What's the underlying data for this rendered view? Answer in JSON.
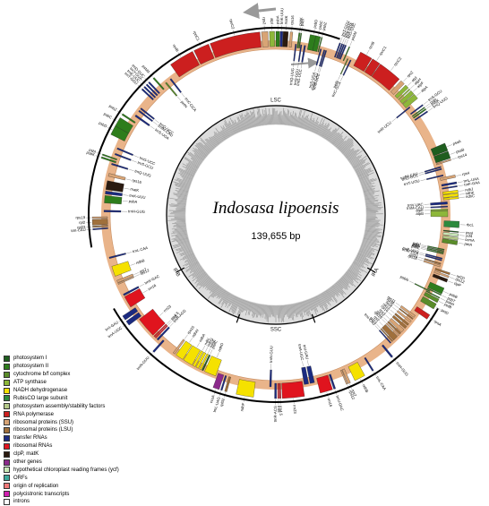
{
  "title": "Indosasa lipoensis",
  "genome_size": "139,655 bp",
  "regions": [
    "LSC",
    "IRB",
    "SSC",
    "IRA"
  ],
  "legend": [
    {
      "label": "photosystem I",
      "color": "#1f5e1f"
    },
    {
      "label": "photosystem II",
      "color": "#2e7d1c"
    },
    {
      "label": "cytochrome b/f complex",
      "color": "#5a8c2a"
    },
    {
      "label": "ATP synthase",
      "color": "#8db73a"
    },
    {
      "label": "NADH dehydrogenase",
      "color": "#f5e100"
    },
    {
      "label": "RubisCO large subunit",
      "color": "#2d8a3e"
    },
    {
      "label": "photosystem assembly/stability factors",
      "color": "#b5c98a"
    },
    {
      "label": "RNA polymerase",
      "color": "#cc1f1f"
    },
    {
      "label": "ribosomal proteins (SSU)",
      "color": "#d8a475"
    },
    {
      "label": "ribosomal proteins (LSU)",
      "color": "#a0703c"
    },
    {
      "label": "transfer RNAs",
      "color": "#1b2a80"
    },
    {
      "label": "ribosomal RNAs",
      "color": "#e0141e"
    },
    {
      "label": "clpP, matK",
      "color": "#2a1a10"
    },
    {
      "label": "other genes",
      "color": "#8c2a8c"
    },
    {
      "label": "hypothetical chloroplast reading frames (ycf)",
      "color": "#c9e8b8"
    },
    {
      "label": "ORFs",
      "color": "#3da89c"
    },
    {
      "label": "origin of replication",
      "color": "#f07878"
    },
    {
      "label": "polycistronic transcripts",
      "color": "#d11fb0"
    },
    {
      "label": "introns",
      "color": "#ffffff"
    }
  ],
  "genes": [
    {
      "name": "psbA",
      "start": 0,
      "end": 1.2,
      "cat": 1,
      "side": "out"
    },
    {
      "name": "trnK-UUU",
      "start": 1.4,
      "end": 2.2,
      "cat": 10,
      "side": "out"
    },
    {
      "name": "matK",
      "start": 2.3,
      "end": 3.9,
      "cat": 12,
      "side": "out"
    },
    {
      "name": "rps16",
      "start": 4.5,
      "end": 5.3,
      "cat": 8,
      "side": "out"
    },
    {
      "name": "trnQ-UUG",
      "start": 6.5,
      "end": 6.9,
      "cat": 10,
      "side": "in"
    },
    {
      "name": "psbK",
      "start": 7.2,
      "end": 7.6,
      "cat": 1,
      "side": "out"
    },
    {
      "name": "psbI",
      "start": 7.8,
      "end": 8.1,
      "cat": 1,
      "side": "out"
    },
    {
      "name": "trnS-GCU",
      "start": 8.3,
      "end": 8.7,
      "cat": 10,
      "side": "in"
    },
    {
      "name": "trnG-UCC",
      "start": 9.5,
      "end": 10.0,
      "cat": 10,
      "side": "in"
    },
    {
      "name": "psbD",
      "start": 10.8,
      "end": 12.8,
      "cat": 1,
      "side": "out"
    },
    {
      "name": "psbC",
      "start": 12.6,
      "end": 14.1,
      "cat": 1,
      "side": "out"
    },
    {
      "name": "psbZ",
      "start": 14.4,
      "end": 14.7,
      "cat": 1,
      "side": "out"
    },
    {
      "name": "trnS-UGA",
      "start": 15.0,
      "end": 15.4,
      "cat": 10,
      "side": "in"
    },
    {
      "name": "trnfM-CAU",
      "start": 16.2,
      "end": 16.6,
      "cat": 10,
      "side": "in"
    },
    {
      "name": "trnG-UCC",
      "start": 16.8,
      "end": 17.2,
      "cat": 10,
      "side": "in"
    },
    {
      "name": "trnT-GGU",
      "start": 20.3,
      "end": 20.7,
      "cat": 10,
      "side": "out"
    },
    {
      "name": "trnE-UUC",
      "start": 21.0,
      "end": 21.4,
      "cat": 10,
      "side": "out"
    },
    {
      "name": "trnY-GUA",
      "start": 21.6,
      "end": 22.0,
      "cat": 10,
      "side": "out"
    },
    {
      "name": "trnD-GUC",
      "start": 22.2,
      "end": 22.6,
      "cat": 10,
      "side": "out"
    },
    {
      "name": "psbM",
      "start": 23.5,
      "end": 23.8,
      "cat": 1,
      "side": "out"
    },
    {
      "name": "petN",
      "start": 24.6,
      "end": 24.9,
      "cat": 2,
      "side": "in"
    },
    {
      "name": "trnC-GCA",
      "start": 25.6,
      "end": 26.0,
      "cat": 10,
      "side": "in"
    },
    {
      "name": "rpoB",
      "start": 27.5,
      "end": 31.5,
      "cat": 7,
      "side": "out"
    },
    {
      "name": "rpoC1",
      "start": 31.8,
      "end": 34.5,
      "cat": 7,
      "side": "out"
    },
    {
      "name": "rpoC2",
      "start": 34.7,
      "end": 42.3,
      "cat": 7,
      "side": "out"
    },
    {
      "name": "rps2",
      "start": 43.0,
      "end": 44.4,
      "cat": 8,
      "side": "out"
    },
    {
      "name": "atpI",
      "start": 45.0,
      "end": 46.2,
      "cat": 3,
      "side": "out"
    },
    {
      "name": "atpH",
      "start": 46.6,
      "end": 47.0,
      "cat": 3,
      "side": "out"
    },
    {
      "name": "atpF",
      "start": 47.4,
      "end": 48.7,
      "cat": 3,
      "side": "out"
    },
    {
      "name": "atpA",
      "start": 48.9,
      "end": 50.6,
      "cat": 3,
      "side": "out"
    },
    {
      "name": "trnR-UCU",
      "start": 51.0,
      "end": 51.4,
      "cat": 10,
      "side": "in"
    },
    {
      "name": "trnS-GCU",
      "start": 53.0,
      "end": 53.4,
      "cat": 10,
      "side": "out"
    },
    {
      "name": "psbI",
      "start": 54.0,
      "end": 54.3,
      "cat": 1,
      "side": "out"
    },
    {
      "name": "psbK",
      "start": 54.6,
      "end": 55.0,
      "cat": 1,
      "side": "out"
    },
    {
      "name": "trnQ-UUG",
      "start": 55.5,
      "end": 55.9,
      "cat": 10,
      "side": "out"
    },
    {
      "name": "psaA",
      "start": 67.0,
      "end": 69.5,
      "cat": 0,
      "side": "out"
    },
    {
      "name": "psaB",
      "start": 69.7,
      "end": 72.0,
      "cat": 0,
      "side": "out"
    },
    {
      "name": "rps14",
      "start": 72.3,
      "end": 72.7,
      "cat": 8,
      "side": "out"
    },
    {
      "name": "trnfM-CAU",
      "start": 73.6,
      "end": 74.0,
      "cat": 10,
      "side": "in"
    },
    {
      "name": "trnG-GCC",
      "start": 74.3,
      "end": 74.7,
      "cat": 10,
      "side": "in"
    },
    {
      "name": "trnT-UGU",
      "start": 76.5,
      "end": 76.9,
      "cat": 10,
      "side": "in"
    },
    {
      "name": "rps4",
      "start": 77.4,
      "end": 78.2,
      "cat": 8,
      "side": "out"
    },
    {
      "name": "trnL-UAA",
      "start": 79.6,
      "end": 80.2,
      "cat": 10,
      "side": "out"
    },
    {
      "name": "trnF-GAA",
      "start": 80.8,
      "end": 81.2,
      "cat": 10,
      "side": "out"
    },
    {
      "name": "ndhJ",
      "start": 82.2,
      "end": 83.0,
      "cat": 4,
      "side": "out"
    },
    {
      "name": "ndhK",
      "start": 83.2,
      "end": 84.1,
      "cat": 4,
      "side": "out"
    },
    {
      "name": "ndhC",
      "start": 84.3,
      "end": 84.9,
      "cat": 4,
      "side": "out"
    },
    {
      "name": "trnV-UAC",
      "start": 85.6,
      "end": 86.4,
      "cat": 10,
      "side": "in"
    },
    {
      "name": "trnM-CAU",
      "start": 87.0,
      "end": 87.4,
      "cat": 10,
      "side": "in"
    },
    {
      "name": "atpE",
      "start": 88.0,
      "end": 88.5,
      "cat": 3,
      "side": "in"
    },
    {
      "name": "atpB",
      "start": 88.6,
      "end": 90.6,
      "cat": 3,
      "side": "in"
    },
    {
      "name": "rbcL",
      "start": 92.0,
      "end": 94.0,
      "cat": 5,
      "side": "out"
    },
    {
      "name": "psaI",
      "start": 95.2,
      "end": 95.5,
      "cat": 0,
      "side": "out"
    },
    {
      "name": "ycf4",
      "start": 95.9,
      "end": 96.7,
      "cat": 14,
      "side": "out"
    },
    {
      "name": "cemA",
      "start": 97.0,
      "end": 97.9,
      "cat": 6,
      "side": "out"
    },
    {
      "name": "petA",
      "start": 98.1,
      "end": 99.4,
      "cat": 2,
      "side": "out"
    },
    {
      "name": "psbJ",
      "start": 101.5,
      "end": 101.8,
      "cat": 1,
      "side": "in"
    },
    {
      "name": "psbL",
      "start": 102.0,
      "end": 102.2,
      "cat": 1,
      "side": "in"
    },
    {
      "name": "psbF",
      "start": 102.4,
      "end": 102.7,
      "cat": 1,
      "side": "in"
    },
    {
      "name": "psbE",
      "start": 102.9,
      "end": 103.2,
      "cat": 1,
      "side": "in"
    },
    {
      "name": "trnP-UGG",
      "start": 104.5,
      "end": 104.9,
      "cat": 10,
      "side": "in"
    },
    {
      "name": "trnW-CCA",
      "start": 105.1,
      "end": 105.5,
      "cat": 10,
      "side": "in"
    },
    {
      "name": "rpl33",
      "start": 106.3,
      "end": 106.7,
      "cat": 9,
      "side": "in"
    },
    {
      "name": "rps18",
      "start": 107.0,
      "end": 107.6,
      "cat": 8,
      "side": "in"
    },
    {
      "name": "rpl20",
      "start": 108.4,
      "end": 109.0,
      "cat": 9,
      "side": "out"
    },
    {
      "name": "rps12",
      "start": 109.4,
      "end": 110.0,
      "cat": 8,
      "side": "out"
    },
    {
      "name": "clpP",
      "start": 110.5,
      "end": 111.5,
      "cat": 12,
      "side": "out"
    },
    {
      "name": "psbB",
      "start": 113.5,
      "end": 115.5,
      "cat": 1,
      "side": "out"
    },
    {
      "name": "psbT",
      "start": 115.7,
      "end": 116.0,
      "cat": 1,
      "side": "out"
    },
    {
      "name": "psbN",
      "start": 116.2,
      "end": 116.5,
      "cat": 1,
      "side": "in"
    },
    {
      "name": "psbH",
      "start": 116.7,
      "end": 117.0,
      "cat": 1,
      "side": "out"
    },
    {
      "name": "petB",
      "start": 117.3,
      "end": 118.5,
      "cat": 2,
      "side": "out"
    },
    {
      "name": "petD",
      "start": 119.0,
      "end": 120.8,
      "cat": 2,
      "side": "out"
    },
    {
      "name": "rpoA",
      "start": 123.0,
      "end": 124.6,
      "cat": 7,
      "side": "out"
    },
    {
      "name": "rps11",
      "start": 125.8,
      "end": 126.6,
      "cat": 8,
      "side": "in"
    },
    {
      "name": "rpl36",
      "start": 127.0,
      "end": 127.4,
      "cat": 9,
      "side": "in"
    },
    {
      "name": "rps8",
      "start": 128.0,
      "end": 128.7,
      "cat": 8,
      "side": "in"
    },
    {
      "name": "rpl14",
      "start": 129.3,
      "end": 130.0,
      "cat": 9,
      "side": "in"
    },
    {
      "name": "rpl16",
      "start": 130.4,
      "end": 131.3,
      "cat": 9,
      "side": "in"
    },
    {
      "name": "rps3",
      "start": 131.8,
      "end": 133.0,
      "cat": 8,
      "side": "in"
    },
    {
      "name": "rpl22",
      "start": 133.3,
      "end": 133.9,
      "cat": 9,
      "side": "in"
    },
    {
      "name": "rps19",
      "start": 134.2,
      "end": 134.7,
      "cat": 8,
      "side": "in"
    },
    {
      "name": "rpl2",
      "start": 135.0,
      "end": 136.8,
      "cat": 9,
      "side": "in"
    },
    {
      "name": "rpl23",
      "start": 137.1,
      "end": 137.5,
      "cat": 9,
      "side": "in"
    },
    {
      "name": "trnI-CAU",
      "start": 137.9,
      "end": 138.3,
      "cat": 10,
      "side": "in"
    },
    {
      "name": "trnH-GUG",
      "start": 140.4,
      "end": 141.0,
      "cat": 10,
      "side": "out"
    },
    {
      "name": "trnL-CAA",
      "start": 147.8,
      "end": 148.3,
      "cat": 10,
      "side": "out"
    },
    {
      "name": "ndhB",
      "start": 151.0,
      "end": 154.5,
      "cat": 4,
      "side": "out"
    },
    {
      "name": "rps7",
      "start": 156.0,
      "end": 156.8,
      "cat": 8,
      "side": "out"
    },
    {
      "name": "rps12",
      "start": 157.0,
      "end": 157.4,
      "cat": 8,
      "side": "out"
    },
    {
      "name": "trnV-GAC",
      "start": 161.0,
      "end": 161.6,
      "cat": 10,
      "side": "out"
    },
    {
      "name": "rrn16",
      "start": 162.0,
      "end": 166.0,
      "cat": 11,
      "side": "out"
    },
    {
      "name": "trnI-GAU",
      "start": 167.0,
      "end": 168.5,
      "cat": 10,
      "side": "in"
    },
    {
      "name": "trnA-UGC",
      "start": 169.0,
      "end": 170.5,
      "cat": 10,
      "side": "in"
    },
    {
      "name": "rrn23",
      "start": 171.0,
      "end": 178.0,
      "cat": 11,
      "side": "out"
    },
    {
      "name": "rrn4.5",
      "start": 178.4,
      "end": 178.8,
      "cat": 11,
      "side": "out"
    },
    {
      "name": "rrn5",
      "start": 179.0,
      "end": 179.4,
      "cat": 11,
      "side": "out"
    },
    {
      "name": "trnR-ACG",
      "start": 179.8,
      "end": 180.4,
      "cat": 10,
      "side": "out"
    },
    {
      "name": "trnN-GUU",
      "start": 181.5,
      "end": 182.1,
      "cat": 10,
      "side": "in"
    },
    {
      "name": "ndhF",
      "start": 187.0,
      "end": 192.5,
      "cat": 4,
      "side": "out"
    },
    {
      "name": "rpl32",
      "start": 195.5,
      "end": 196.2,
      "cat": 9,
      "side": "out"
    },
    {
      "name": "trnL-UAG",
      "start": 197.0,
      "end": 197.5,
      "cat": 10,
      "side": "out"
    },
    {
      "name": "ccsA",
      "start": 198.0,
      "end": 200.0,
      "cat": 13,
      "side": "out"
    },
    {
      "name": "ndhD",
      "start": 200.5,
      "end": 204.5,
      "cat": 4,
      "side": "in"
    },
    {
      "name": "psaC",
      "start": 205.0,
      "end": 205.5,
      "cat": 0,
      "side": "in"
    },
    {
      "name": "ndhE",
      "start": 205.8,
      "end": 206.4,
      "cat": 4,
      "side": "in"
    },
    {
      "name": "ndhG",
      "start": 206.8,
      "end": 207.7,
      "cat": 4,
      "side": "in"
    },
    {
      "name": "ndhI",
      "start": 208.0,
      "end": 208.9,
      "cat": 4,
      "side": "in"
    },
    {
      "name": "ndhA",
      "start": 209.2,
      "end": 212.5,
      "cat": 4,
      "side": "in"
    },
    {
      "name": "ndhH",
      "start": 212.8,
      "end": 215.5,
      "cat": 4,
      "side": "in"
    },
    {
      "name": "rps15",
      "start": 216.0,
      "end": 216.7,
      "cat": 8,
      "side": "in"
    },
    {
      "name": "trnN-GUU",
      "start": 221.5,
      "end": 222.1,
      "cat": 10,
      "side": "out"
    },
    {
      "name": "trnR-ACG",
      "start": 223.2,
      "end": 223.8,
      "cat": 10,
      "side": "in"
    },
    {
      "name": "rrn5",
      "start": 224.2,
      "end": 224.6,
      "cat": 11,
      "side": "in"
    },
    {
      "name": "rrn4.5",
      "start": 224.8,
      "end": 225.2,
      "cat": 11,
      "side": "in"
    },
    {
      "name": "rrn23",
      "start": 225.6,
      "end": 232.6,
      "cat": 11,
      "side": "in"
    },
    {
      "name": "trnA-UGC",
      "start": 233.1,
      "end": 234.6,
      "cat": 10,
      "side": "out"
    },
    {
      "name": "trnI-GAU",
      "start": 235.1,
      "end": 236.6,
      "cat": 10,
      "side": "out"
    },
    {
      "name": "rrn16",
      "start": 237.6,
      "end": 241.6,
      "cat": 11,
      "side": "in"
    },
    {
      "name": "trnV-GAC",
      "start": 242.0,
      "end": 242.6,
      "cat": 10,
      "side": "in"
    },
    {
      "name": "rps12",
      "start": 246.2,
      "end": 246.6,
      "cat": 8,
      "side": "in"
    },
    {
      "name": "rps7",
      "start": 246.8,
      "end": 247.6,
      "cat": 8,
      "side": "in"
    },
    {
      "name": "ndhB",
      "start": 249.1,
      "end": 252.6,
      "cat": 4,
      "side": "in"
    },
    {
      "name": "trnL-CAA",
      "start": 255.3,
      "end": 255.8,
      "cat": 10,
      "side": "in"
    },
    {
      "name": "trnI-CAU",
      "start": 265.3,
      "end": 265.7,
      "cat": 10,
      "side": "out"
    },
    {
      "name": "rpl23",
      "start": 266.1,
      "end": 266.5,
      "cat": 9,
      "side": "out"
    },
    {
      "name": "rpl2",
      "start": 266.8,
      "end": 268.6,
      "cat": 9,
      "side": "out"
    },
    {
      "name": "rps19",
      "start": 268.9,
      "end": 269.4,
      "cat": 8,
      "side": "out"
    },
    {
      "name": "trnH-GUG",
      "start": 271.0,
      "end": 271.6,
      "cat": 10,
      "side": "in"
    },
    {
      "name": "psbA",
      "start": 274.0,
      "end": 276.5,
      "cat": 1,
      "side": "in"
    },
    {
      "name": "trnK-UUU",
      "start": 277.0,
      "end": 278.0,
      "cat": 10,
      "side": "in"
    },
    {
      "name": "matK",
      "start": 278.5,
      "end": 281.5,
      "cat": 12,
      "side": "in"
    },
    {
      "name": "rps16",
      "start": 283.0,
      "end": 284.0,
      "cat": 8,
      "side": "in"
    },
    {
      "name": "trnQ-UUG",
      "start": 287.0,
      "end": 287.5,
      "cat": 10,
      "side": "in"
    },
    {
      "name": "psbK",
      "start": 288.0,
      "end": 288.5,
      "cat": 1,
      "side": "out"
    },
    {
      "name": "psbI",
      "start": 289.0,
      "end": 289.4,
      "cat": 1,
      "side": "out"
    },
    {
      "name": "trnS-GCU",
      "start": 290.5,
      "end": 291.0,
      "cat": 10,
      "side": "in"
    },
    {
      "name": "trnG-UCC",
      "start": 292.5,
      "end": 293.0,
      "cat": 10,
      "side": "in"
    },
    {
      "name": "psbD",
      "start": 296.0,
      "end": 299.0,
      "cat": 1,
      "side": "out"
    },
    {
      "name": "psbC",
      "start": 299.0,
      "end": 302.0,
      "cat": 1,
      "side": "out"
    },
    {
      "name": "psbZ",
      "start": 303.0,
      "end": 303.5,
      "cat": 1,
      "side": "out"
    },
    {
      "name": "trnS-UGA",
      "start": 305.0,
      "end": 305.6,
      "cat": 10,
      "side": "in"
    },
    {
      "name": "trnfM-CAU",
      "start": 307.0,
      "end": 307.5,
      "cat": 10,
      "side": "in"
    },
    {
      "name": "trnG-UCC",
      "start": 308.0,
      "end": 308.5,
      "cat": 10,
      "side": "in"
    },
    {
      "name": "trnT-GGU",
      "start": 313.0,
      "end": 313.5,
      "cat": 10,
      "side": "out"
    },
    {
      "name": "trnE-UUC",
      "start": 314.0,
      "end": 314.5,
      "cat": 10,
      "side": "out"
    },
    {
      "name": "trnY-GUA",
      "start": 315.0,
      "end": 315.5,
      "cat": 10,
      "side": "out"
    },
    {
      "name": "trnD-GUC",
      "start": 316.0,
      "end": 316.5,
      "cat": 10,
      "side": "out"
    },
    {
      "name": "psbM",
      "start": 318.0,
      "end": 318.5,
      "cat": 1,
      "side": "out"
    },
    {
      "name": "petN",
      "start": 320.0,
      "end": 320.5,
      "cat": 2,
      "side": "in"
    },
    {
      "name": "trnC-GCA",
      "start": 322.0,
      "end": 322.5,
      "cat": 10,
      "side": "in"
    },
    {
      "name": "rpoB",
      "start": 325.0,
      "end": 333.0,
      "cat": 7,
      "side": "out"
    },
    {
      "name": "rpoC1",
      "start": 333.5,
      "end": 338.5,
      "cat": 7,
      "side": "out"
    },
    {
      "name": "rpoC2",
      "start": 339.0,
      "end": 355.0,
      "cat": 7,
      "side": "out"
    },
    {
      "name": "rps2",
      "start": 355.5,
      "end": 357.5,
      "cat": 8,
      "side": "out"
    },
    {
      "name": "atpI",
      "start": 358.0,
      "end": 359.6,
      "cat": 3,
      "side": "out"
    }
  ],
  "ir_boundaries_deg": [
    140,
    220
  ]
}
